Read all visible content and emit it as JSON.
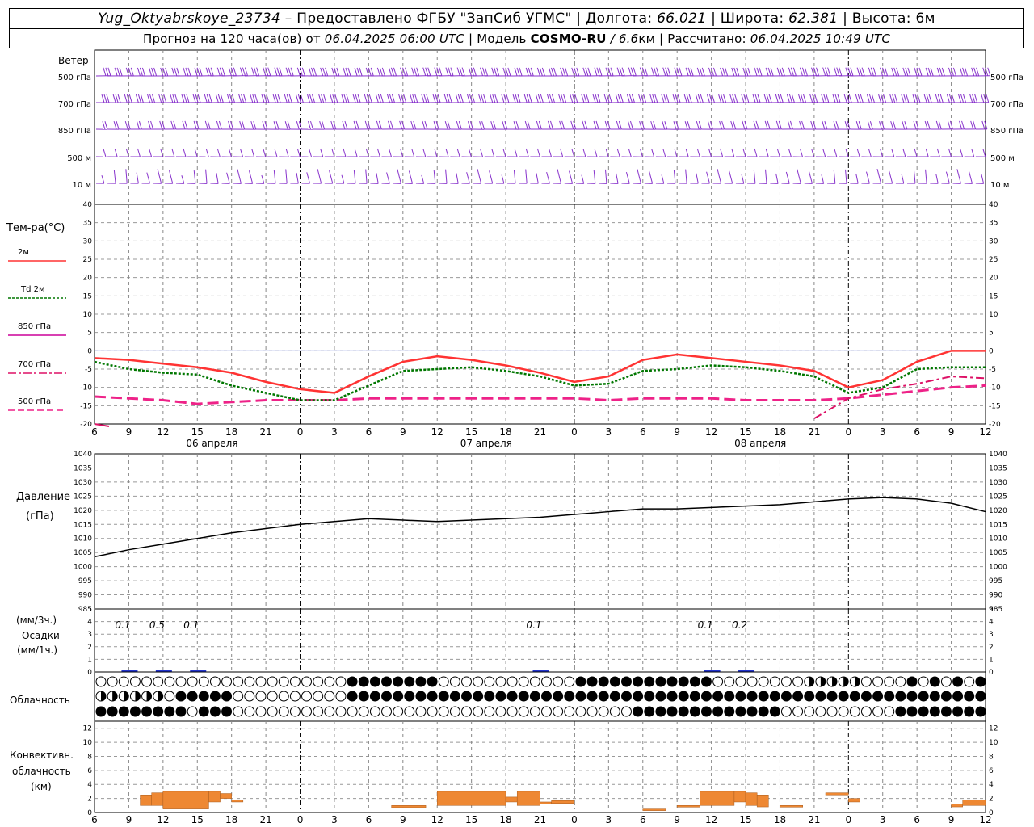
{
  "header": {
    "station": "Yug_Oktyabrskoye_23734",
    "provided": " – Предоставлено ФГБУ \"ЗапСиб УГМС\" | Долгота: ",
    "lon": "66.021",
    "lat_label": " | Широта: ",
    "lat": "62.381",
    "alt_label": " | Высота: 6м",
    "forecast_label": "Прогноз на 120 часа(ов) от ",
    "forecast_date": "06.04.2025 06:00 UTC",
    "model_label": "  | Модель ",
    "model": "COSMO-RU",
    "model_res": " / 6.6",
    "model_unit": "км",
    "calc_label": " | Рассчитано: ",
    "calc_date": "06.04.2025 10:49 UTC"
  },
  "wind_panel": {
    "title": "Ветер",
    "levels": [
      "500 гПа",
      "700 гПа",
      "850 гПа",
      "500 м",
      "10  м"
    ]
  },
  "temp_panel": {
    "title": "Тем-ра(°C)",
    "legend": [
      {
        "label": "2м",
        "color": "#ff3333",
        "style": "solid"
      },
      {
        "label": "Td  2м",
        "color": "#007700",
        "style": "dotted"
      },
      {
        "label": "850 гПа",
        "color": "#cc0099",
        "style": "solid"
      },
      {
        "label": "700 гПа",
        "color": "#dd1166",
        "style": "dashdot"
      },
      {
        "label": "500 гПа",
        "color": "#ee2288",
        "style": "dashed"
      }
    ]
  },
  "pressure_panel": {
    "title": "Давление",
    "unit": "(гПа)"
  },
  "precip_panel": {
    "unit1": "(мм/3ч.)",
    "title": "Осадки",
    "unit2": "(мм/1ч.)"
  },
  "cloud_panel": {
    "title": "Облачность"
  },
  "conv_panel": {
    "title1": "Конвективн.",
    "title2": "облачность",
    "unit": "(км)"
  },
  "dates": [
    "06 апреля",
    "07 апреля",
    "08 апреля"
  ],
  "hour_ticks": [
    "6",
    "9",
    "12",
    "15",
    "18",
    "21",
    "0",
    "3",
    "6",
    "9",
    "12",
    "15",
    "18",
    "21",
    "0",
    "3",
    "6",
    "9",
    "12",
    "15",
    "18",
    "21",
    "0",
    "3",
    "6",
    "9",
    "12"
  ],
  "precip_labels": [
    {
      "h": 3,
      "text": "0.1"
    },
    {
      "h": 6,
      "text": "0.5"
    },
    {
      "h": 9,
      "text": "0.1"
    },
    {
      "h": 39,
      "text": "0.1"
    },
    {
      "h": 54,
      "text": "0.1"
    },
    {
      "h": 57,
      "text": "0.2"
    }
  ],
  "colors": {
    "temp2m": "#ff3333",
    "td2m": "#007700",
    "t850": "#cc0099",
    "t700": "#dd1166",
    "t500": "#ee2288",
    "pressure": "#000000",
    "precip": "#2233cc",
    "conv": "#ee8833",
    "wind": "#8833cc"
  },
  "chart_data": [
    {
      "type": "line",
      "title": "Тем-ра(°C)",
      "x_hours": [
        0,
        3,
        6,
        9,
        12,
        15,
        18,
        21,
        24,
        27,
        30,
        33,
        36,
        39,
        42,
        45,
        48,
        51,
        54,
        57,
        60,
        63,
        66,
        69,
        72,
        75,
        78
      ],
      "ylim": [
        -20,
        40
      ],
      "series": [
        {
          "name": "2м",
          "values": [
            -2,
            -2.5,
            -3.5,
            -4.5,
            -6,
            -8.5,
            -10.5,
            -11.5,
            -7,
            -3,
            -1.5,
            -2.5,
            -4,
            -6,
            -8.5,
            -7,
            -2.5,
            -1,
            -2,
            -3,
            -4,
            -5.5,
            -10,
            -8,
            -3,
            0,
            0
          ]
        },
        {
          "name": "Td  2м",
          "values": [
            -3,
            -5,
            -6,
            -6.5,
            -9.5,
            -11.5,
            -13.5,
            -13.5,
            -9.5,
            -5.5,
            -5,
            -4.5,
            -5.5,
            -7,
            -9.5,
            -9,
            -5.5,
            -5,
            -4,
            -4.5,
            -5.5,
            -7,
            -11.5,
            -10,
            -5,
            -4.5,
            -4.5
          ]
        },
        {
          "name": "700 гПа",
          "values": [
            -20.5,
            null,
            null,
            null,
            null,
            null,
            null,
            null,
            null,
            null,
            null,
            null,
            null,
            null,
            null,
            null,
            null,
            null,
            null,
            null,
            null,
            -18.5,
            -13,
            -10.5,
            -9,
            -7,
            -7.5
          ]
        },
        {
          "name": "500 гПа",
          "values": [
            -12.5,
            -13,
            -13.5,
            -14.5,
            -14,
            -13.5,
            -13.5,
            -13.5,
            -13,
            -13,
            -13,
            -13,
            -13,
            -13,
            -13,
            -13.5,
            -13,
            -13,
            -13,
            -13.5,
            -13.5,
            -13.5,
            -13,
            -12,
            -11,
            -10,
            -9.5
          ]
        }
      ]
    },
    {
      "type": "line",
      "title": "Давление",
      "x_hours": [
        0,
        3,
        6,
        9,
        12,
        15,
        18,
        21,
        24,
        27,
        30,
        33,
        36,
        39,
        42,
        45,
        48,
        51,
        54,
        57,
        60,
        63,
        66,
        69,
        72,
        75,
        78
      ],
      "ylim": [
        985,
        1040
      ],
      "series": [
        {
          "name": "Давление",
          "values": [
            1003.5,
            1006,
            1008,
            1010,
            1012,
            1013.5,
            1015,
            1016,
            1017,
            1016.5,
            1016,
            1016.5,
            1017,
            1017.5,
            1018.5,
            1019.5,
            1020.5,
            1020.5,
            1021,
            1021.5,
            1022,
            1023,
            1024,
            1024.5,
            1024,
            1022.5,
            1019.5
          ]
        }
      ]
    },
    {
      "type": "bar",
      "title": "Осадки",
      "ylim": [
        0,
        5
      ],
      "x_hours": [
        3,
        6,
        9,
        39,
        54,
        57
      ],
      "values": [
        0.1,
        0.5,
        0.1,
        0.1,
        0.1,
        0.2
      ]
    },
    {
      "type": "bar",
      "title": "Конвективн. облачность",
      "ylim": [
        0,
        13
      ],
      "segments": [
        {
          "from": 4,
          "to": 5,
          "base": 1,
          "top": 2.5
        },
        {
          "from": 5,
          "to": 6,
          "base": 1,
          "top": 2.8
        },
        {
          "from": 6,
          "to": 10,
          "base": 0.5,
          "top": 3
        },
        {
          "from": 10,
          "to": 11,
          "base": 1.5,
          "top": 3
        },
        {
          "from": 11,
          "to": 12,
          "base": 2,
          "top": 2.7
        },
        {
          "from": 12,
          "to": 13,
          "base": 1.5,
          "top": 1.8
        },
        {
          "from": 26,
          "to": 29,
          "base": 0.7,
          "top": 1
        },
        {
          "from": 30,
          "to": 36,
          "base": 1,
          "top": 3
        },
        {
          "from": 36,
          "to": 37,
          "base": 1.5,
          "top": 2.2
        },
        {
          "from": 37,
          "to": 39,
          "base": 1,
          "top": 3
        },
        {
          "from": 39,
          "to": 40,
          "base": 1.2,
          "top": 1.5
        },
        {
          "from": 40,
          "to": 42,
          "base": 1.3,
          "top": 1.7
        },
        {
          "from": 48,
          "to": 50,
          "base": 0.3,
          "top": 0.5
        },
        {
          "from": 51,
          "to": 53,
          "base": 0.8,
          "top": 1
        },
        {
          "from": 53,
          "to": 56,
          "base": 1,
          "top": 3
        },
        {
          "from": 56,
          "to": 57,
          "base": 1.5,
          "top": 3
        },
        {
          "from": 57,
          "to": 58,
          "base": 1,
          "top": 2.8
        },
        {
          "from": 58,
          "to": 59,
          "base": 0.8,
          "top": 2.5
        },
        {
          "from": 60,
          "to": 62,
          "base": 0.8,
          "top": 1
        },
        {
          "from": 64,
          "to": 66,
          "base": 2.5,
          "top": 2.8
        },
        {
          "from": 66,
          "to": 67,
          "base": 1.5,
          "top": 2
        },
        {
          "from": 75,
          "to": 76,
          "base": 0.8,
          "top": 1.2
        },
        {
          "from": 76,
          "to": 78,
          "base": 1,
          "top": 1.8
        }
      ]
    }
  ]
}
